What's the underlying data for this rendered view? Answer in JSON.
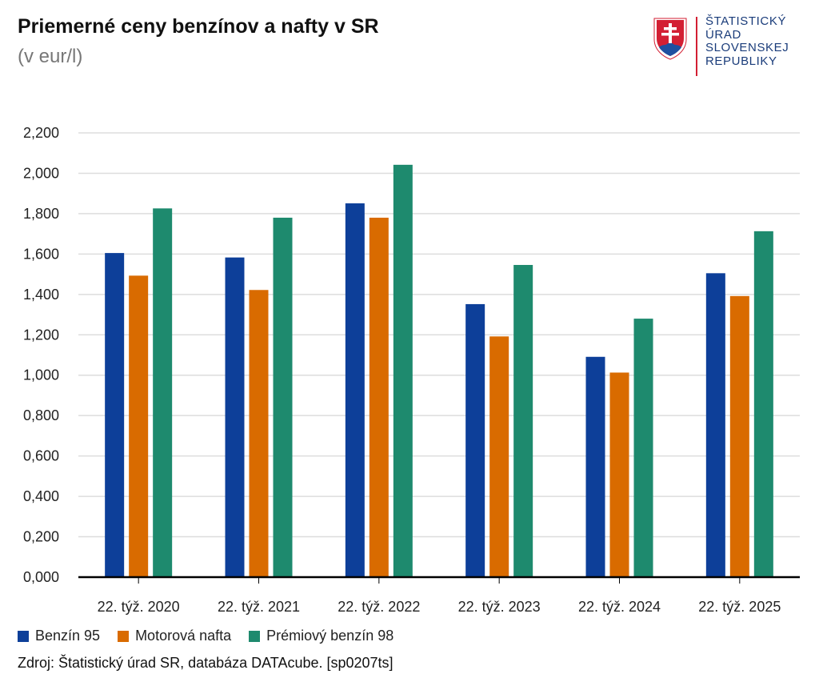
{
  "header": {
    "title": "Priemerné ceny benzínov a nafty v SR",
    "subtitle": "(v eur/l)"
  },
  "logo": {
    "lines": [
      "ŠTATISTICKÝ",
      "ÚRAD",
      "SLOVENSKEJ",
      "REPUBLIKY"
    ],
    "icon": "slovak-coat-of-arms-icon"
  },
  "source": "Zdroj: Štatistický úrad SR, databáza DATAcube. [sp0207ts]",
  "colors": {
    "benzin95": "#0d3f99",
    "nafta": "#d96b00",
    "premium98": "#1e8a6e",
    "grid": "#dddddd",
    "axis": "#000000"
  },
  "chart_data": {
    "type": "bar",
    "title": "Priemerné ceny benzínov a nafty v SR",
    "subtitle": "(v eur/l)",
    "categories": [
      "22. týž. 2020",
      "22. týž. 2021",
      "22. týž. 2022",
      "22. týž. 2023",
      "22. týž. 2024",
      "22. týž. 2025"
    ],
    "series": [
      {
        "name": "Benzín 95",
        "color": "#0d3f99",
        "values": [
          1.605,
          1.583,
          1.851,
          1.352,
          1.091,
          1.505
        ]
      },
      {
        "name": "Motorová nafta",
        "color": "#d96b00",
        "values": [
          1.493,
          1.422,
          1.78,
          1.192,
          1.013,
          1.392
        ]
      },
      {
        "name": "Prémiový benzín 98",
        "color": "#1e8a6e",
        "values": [
          1.826,
          1.78,
          2.042,
          1.546,
          1.28,
          1.713
        ]
      }
    ],
    "yticks": [
      "0,000",
      "0,200",
      "0,400",
      "0,600",
      "0,800",
      "1,000",
      "1,200",
      "1,400",
      "1,600",
      "1,800",
      "2,000",
      "2,200"
    ],
    "ylim": [
      0,
      2.2
    ],
    "grid": true,
    "legend_position": "bottom-left"
  }
}
